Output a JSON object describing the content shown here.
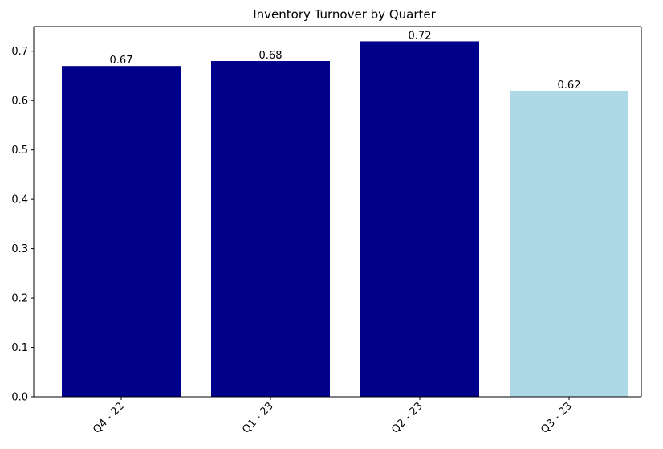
{
  "chart_data": {
    "type": "bar",
    "title": "Inventory Turnover by Quarter",
    "xlabel": "",
    "ylabel": "",
    "categories": [
      "Q4 - 22",
      "Q1 - 23",
      "Q2 - 23",
      "Q3 - 23"
    ],
    "values": [
      0.67,
      0.68,
      0.72,
      0.62
    ],
    "value_labels": [
      "0.67",
      "0.68",
      "0.72",
      "0.62"
    ],
    "bar_colors": [
      "#00008b",
      "#00008b",
      "#00008b",
      "#add8e6"
    ],
    "ylim": [
      0,
      0.75
    ],
    "yticks": [
      0.0,
      0.1,
      0.2,
      0.3,
      0.4,
      0.5,
      0.6,
      0.7
    ],
    "ytick_labels": [
      "0.0",
      "0.1",
      "0.2",
      "0.3",
      "0.4",
      "0.5",
      "0.6",
      "0.7"
    ],
    "grid": false,
    "legend": "none"
  }
}
